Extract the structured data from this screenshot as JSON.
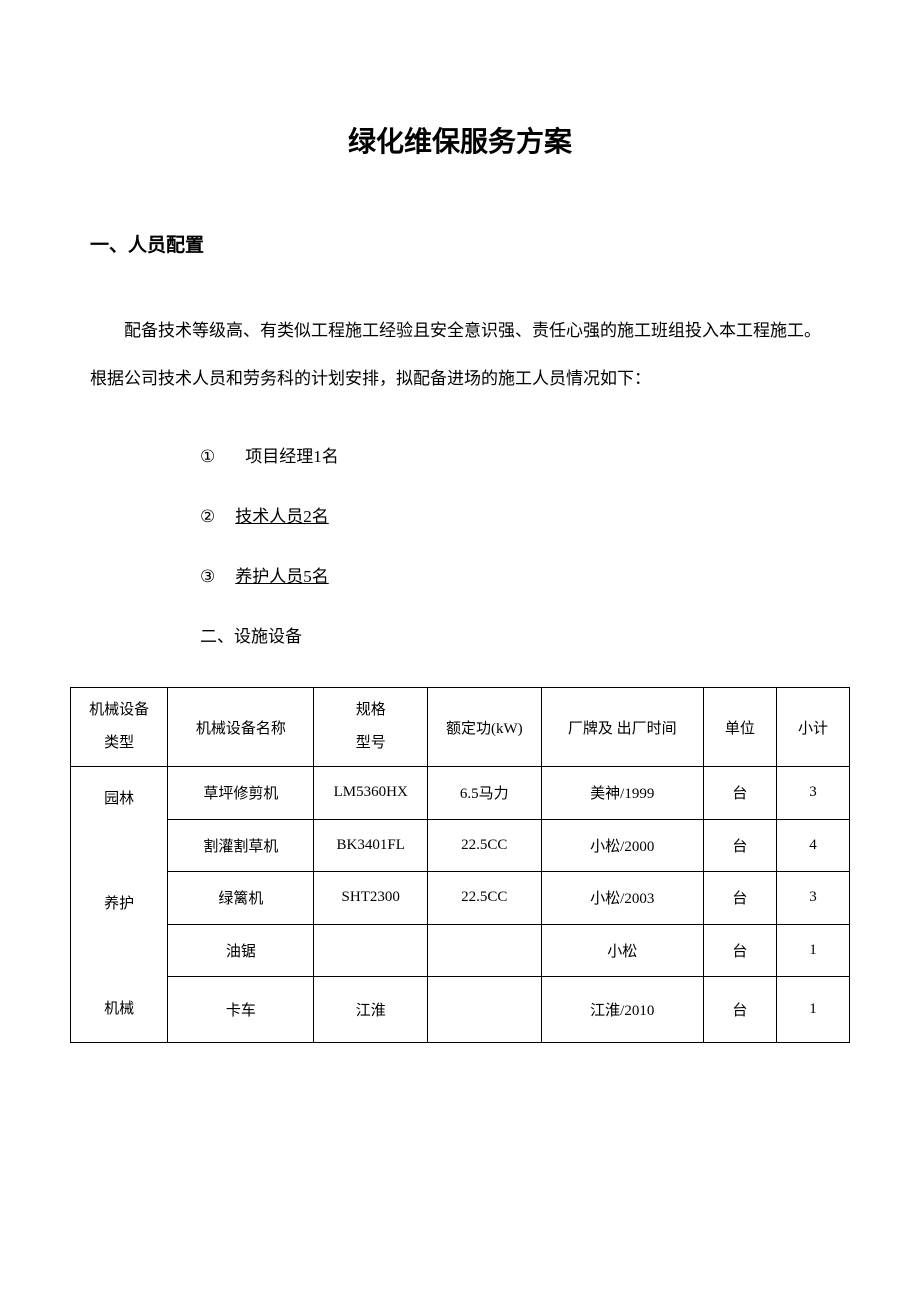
{
  "title": "绿化维保服务方案",
  "section1": {
    "heading": "一、人员配置",
    "paragraph": "配备技术等级高、有类似工程施工经验且安全意识强、责任心强的施工班组投入本工程施工。根据公司技术人员和劳务科的计划安排，拟配备进场的施工人员情况如下：",
    "items": [
      {
        "marker": "①",
        "text": "项目经理1名",
        "underlined": false
      },
      {
        "marker": "②",
        "text": "技术人员2名",
        "underlined": true
      },
      {
        "marker": "③",
        "text": "养护人员5名",
        "underlined": true
      }
    ]
  },
  "section2": {
    "heading": "二、设施设备",
    "table": {
      "headers": {
        "type": "机械设备类型",
        "type_line1": "机械设备",
        "type_line2": "类型",
        "name": "机械设备名称",
        "spec_line1": "规格",
        "spec_line2": "型号",
        "power": "额定功(kW)",
        "brand": "厂牌及 出厂时间",
        "unit": "单位",
        "count": "小计"
      },
      "category_line1": "园林",
      "category_line2": "养护",
      "category_line3": "机械",
      "rows": [
        {
          "name": "草坪修剪机",
          "spec": "LM5360HX",
          "power": "6.5马力",
          "brand": "美神/1999",
          "unit": "台",
          "count": "3"
        },
        {
          "name": "割灌割草机",
          "spec": "BK3401FL",
          "power": "22.5CC",
          "brand": "小松/2000",
          "unit": "台",
          "count": "4"
        },
        {
          "name": "绿篱机",
          "spec": "SHT2300",
          "power": "22.5CC",
          "brand": "小松/2003",
          "unit": "台",
          "count": "3"
        },
        {
          "name": "油锯",
          "spec": "",
          "power": "",
          "brand": "小松",
          "unit": "台",
          "count": "1"
        },
        {
          "name": "卡车",
          "spec": "江淮",
          "power": "",
          "brand": "江淮/2010",
          "unit": "台",
          "count": "1"
        }
      ]
    }
  },
  "styling": {
    "background_color": "#ffffff",
    "text_color": "#000000",
    "border_color": "#000000",
    "title_fontsize": 28,
    "heading_fontsize": 19,
    "body_fontsize": 17,
    "table_fontsize": 15
  }
}
